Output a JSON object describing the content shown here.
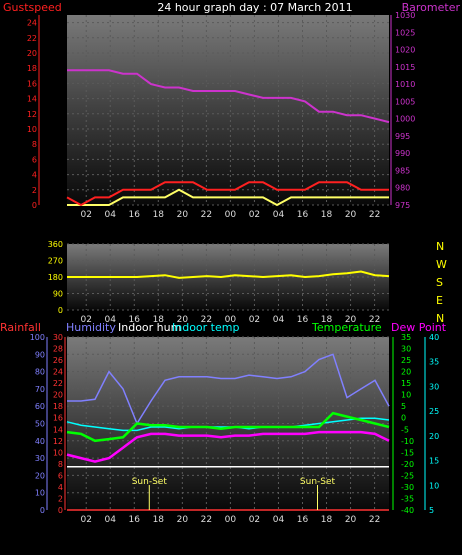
{
  "header": {
    "left_label": "Gustspeed",
    "title": "24 hour graph day : 07 March 2011",
    "right_label": "Barometer"
  },
  "colors": {
    "gust": "#ff2020",
    "wind": "#ffff66",
    "barometer": "#cc33cc",
    "direction": "#ffff00",
    "rain": "#ff3333",
    "humidity": "#8080ff",
    "indoor_hum": "#ffffff",
    "indoor_temp": "#00ffff",
    "temperature": "#00ff00",
    "dew_point": "#ff00ff",
    "sunset_line": "#ffff66"
  },
  "chart_data": [
    {
      "type": "line",
      "title": "24 hour graph day : 07 March 2011",
      "x_ticks": [
        "02",
        "04",
        "16",
        "18",
        "20",
        "22",
        "00",
        "02",
        "04",
        "16",
        "18",
        "20",
        "22"
      ],
      "left_axis": {
        "label": "Gustspeed",
        "ticks": [
          0,
          2,
          4,
          6,
          8,
          10,
          12,
          14,
          16,
          18,
          20,
          22,
          24
        ],
        "range": [
          0,
          25
        ]
      },
      "right_axis": {
        "label": "Barometer",
        "ticks": [
          975,
          980,
          985,
          990,
          995,
          1000,
          1005,
          1010,
          1015,
          1020,
          1025,
          1030
        ],
        "range": [
          975,
          1030
        ]
      },
      "series": [
        {
          "name": "Barometer",
          "axis": "right",
          "values": [
            1014,
            1014,
            1014,
            1014,
            1013,
            1013,
            1010,
            1009,
            1009,
            1008,
            1008,
            1008,
            1008,
            1007,
            1006,
            1006,
            1006,
            1005,
            1002,
            1002,
            1001,
            1001,
            1000,
            999
          ]
        },
        {
          "name": "Gustspeed",
          "axis": "left",
          "values": [
            1,
            0,
            1,
            1,
            2,
            2,
            2,
            3,
            3,
            3,
            2,
            2,
            2,
            3,
            3,
            2,
            2,
            2,
            3,
            3,
            3,
            2,
            2,
            2
          ]
        },
        {
          "name": "Windspeed",
          "axis": "left",
          "values": [
            0,
            0,
            0,
            0,
            1,
            1,
            1,
            1,
            2,
            1,
            1,
            1,
            1,
            1,
            1,
            0,
            1,
            1,
            1,
            1,
            1,
            1,
            1,
            1
          ]
        }
      ]
    },
    {
      "type": "line",
      "x_ticks": [
        "02",
        "04",
        "16",
        "18",
        "20",
        "22",
        "00",
        "02",
        "04",
        "16",
        "18",
        "20",
        "22"
      ],
      "left_axis": {
        "ticks": [
          0,
          90,
          180,
          270,
          360
        ],
        "range": [
          0,
          360
        ]
      },
      "right_axis": {
        "labels": [
          "N",
          "W",
          "S",
          "E",
          "N"
        ]
      },
      "series": [
        {
          "name": "Wind Direction",
          "values": [
            180,
            180,
            180,
            180,
            180,
            180,
            185,
            190,
            175,
            180,
            185,
            180,
            190,
            185,
            180,
            185,
            190,
            180,
            185,
            195,
            200,
            210,
            190,
            185
          ]
        }
      ]
    },
    {
      "type": "line",
      "x_ticks": [
        "02",
        "04",
        "16",
        "18",
        "20",
        "22",
        "00",
        "02",
        "04",
        "16",
        "18",
        "20",
        "22"
      ],
      "legend": [
        "Rainfall",
        "Humidity",
        "Indoor hum",
        "Indoor temp",
        "Temperature",
        "Dew Point"
      ],
      "axes": {
        "humidity": {
          "ticks": [
            0,
            10,
            20,
            30,
            40,
            50,
            60,
            70,
            80,
            90,
            100
          ],
          "range": [
            0,
            100
          ]
        },
        "rainfall": {
          "ticks": [
            0,
            2,
            4,
            6,
            8,
            10,
            12,
            14,
            16,
            18,
            20,
            22,
            24,
            26,
            28,
            30
          ],
          "range": [
            0,
            30
          ]
        },
        "temperature": {
          "ticks": [
            35,
            30,
            25,
            20,
            15,
            10,
            5,
            0,
            -5,
            -10,
            -15,
            -20,
            -25,
            -30,
            -35,
            -40
          ],
          "range": [
            -40,
            35
          ]
        },
        "dew_point": {
          "ticks": [
            40,
            35,
            30,
            25,
            20,
            15,
            10,
            5
          ],
          "range": [
            5,
            40
          ]
        }
      },
      "annotations": [
        "Sun-Set",
        "Sun-Set"
      ],
      "series": [
        {
          "name": "Humidity",
          "values": [
            63,
            63,
            64,
            80,
            70,
            50,
            63,
            75,
            77,
            77,
            77,
            76,
            76,
            78,
            77,
            76,
            77,
            80,
            87,
            90,
            65,
            70,
            75,
            60
          ]
        },
        {
          "name": "Indoor hum",
          "values": [
            25,
            25,
            25,
            25,
            25,
            25,
            25,
            25,
            25,
            25,
            25,
            25,
            25,
            25,
            25,
            25,
            25,
            25,
            25,
            25,
            25,
            25,
            25,
            25
          ]
        },
        {
          "name": "Indoor temp",
          "values": [
            51,
            49,
            48,
            47,
            46,
            46,
            48,
            48,
            47,
            48,
            48,
            48,
            48,
            47,
            48,
            48,
            48,
            49,
            50,
            51,
            52,
            53,
            53,
            52
          ]
        },
        {
          "name": "Temperature",
          "values": [
            45,
            44,
            40,
            41,
            42,
            50,
            49,
            49,
            48,
            48,
            48,
            47,
            48,
            48,
            48,
            48,
            48,
            48,
            48,
            56,
            54,
            52,
            50,
            48
          ]
        },
        {
          "name": "Dew Point",
          "values": [
            32,
            30,
            28,
            30,
            36,
            42,
            44,
            44,
            43,
            43,
            43,
            42,
            43,
            43,
            44,
            44,
            44,
            44,
            45,
            45,
            45,
            45,
            44,
            40
          ]
        },
        {
          "name": "Rainfall",
          "values": [
            0,
            0,
            0,
            0,
            0,
            0,
            0,
            0,
            0,
            0,
            0,
            0,
            0,
            0,
            0,
            0,
            0,
            0,
            0,
            0,
            0,
            0,
            0,
            0
          ]
        }
      ]
    }
  ]
}
